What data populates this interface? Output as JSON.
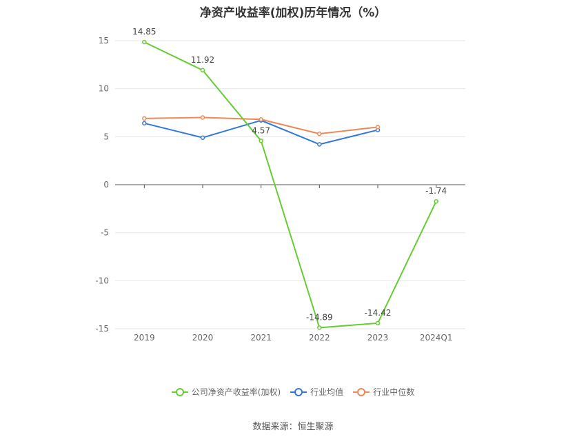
{
  "title": "净资产收益率(加权)历年情况（%）",
  "source": "数据来源：恒生聚源",
  "chart_data": {
    "type": "line",
    "categories": [
      "2019",
      "2020",
      "2021",
      "2022",
      "2023",
      "2024Q1"
    ],
    "ylim": [
      -15,
      15
    ],
    "yticks": [
      -15,
      -10,
      -5,
      0,
      5,
      10,
      15
    ],
    "grid": true,
    "legend_position": "bottom",
    "series": [
      {
        "name": "公司净资产收益率(加权)",
        "color": "#66cc33",
        "values": [
          14.85,
          11.92,
          4.57,
          -14.89,
          -14.42,
          -1.74
        ],
        "labels": [
          "14.85",
          "11.92",
          "4.57",
          "-14.89",
          "-14.42",
          "-1.74"
        ]
      },
      {
        "name": "行业均值",
        "color": "#3377dd",
        "values": [
          6.4,
          4.9,
          6.7,
          4.2,
          5.7,
          null
        ]
      },
      {
        "name": "行业中位数",
        "color": "#ee8855",
        "values": [
          6.9,
          7.0,
          6.8,
          5.3,
          6.0,
          null
        ]
      }
    ]
  }
}
